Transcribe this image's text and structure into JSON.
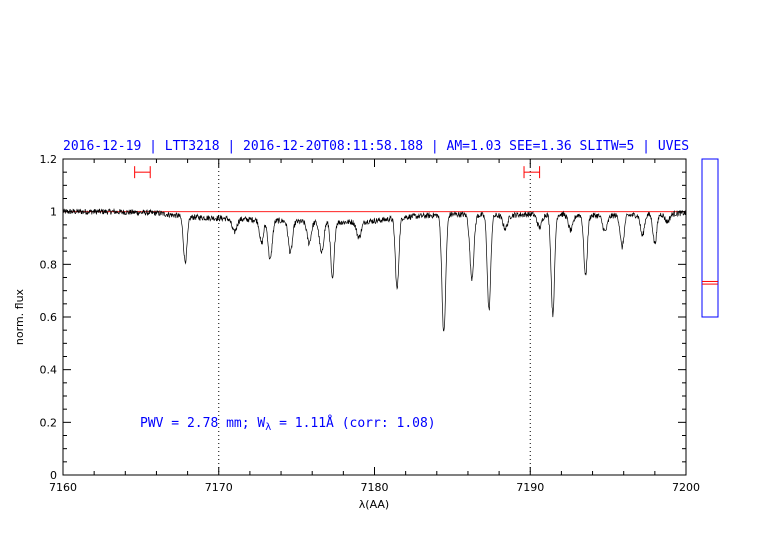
{
  "colors": {
    "spectrum": "#000000",
    "continuum": "#ff0000",
    "text": "#0000ff",
    "side_box": "#0000ff"
  },
  "chart_data": {
    "type": "line",
    "title": "2016-12-19 | LTT3218 | 2016-12-20T08:11:58.188 | AM=1.03  SEE=1.36  SLITW=5 | UVES",
    "xlabel": "λ(AA)",
    "ylabel": "norm. flux",
    "xlim": [
      7160,
      7200
    ],
    "ylim": [
      0,
      1.2
    ],
    "x_ticks": [
      7160,
      7170,
      7180,
      7190,
      7200
    ],
    "x_tick_labels": [
      "7160",
      "7170",
      "7180",
      "7190",
      "7200"
    ],
    "y_ticks": [
      0,
      0.2,
      0.4,
      0.6,
      0.8,
      1,
      1.2
    ],
    "y_tick_labels": [
      "0",
      "0.2",
      "0.4",
      "0.6",
      "0.8",
      "1",
      "1.2"
    ],
    "continuum_level": 1.0,
    "reference_lines_x": [
      7170,
      7190
    ],
    "windows": [
      {
        "x_range": [
          7164.6,
          7165.6
        ],
        "y": 1.15
      },
      {
        "x_range": [
          7189.6,
          7190.6
        ],
        "y": 1.15
      }
    ],
    "side_indicator": {
      "box_range": [
        0.6,
        1.2
      ],
      "marks": [
        0.735,
        0.725
      ]
    },
    "annotation": {
      "prefix": "PWV = 2.78 mm; W",
      "subscript": "λ",
      "suffix": " = 1.11Å (corr: 1.08)"
    },
    "series": [
      {
        "baseline": [
          [
            7160,
            1.0
          ],
          [
            7163,
            1.0
          ],
          [
            7166,
            0.995
          ],
          [
            7168,
            0.98
          ],
          [
            7170,
            0.975
          ],
          [
            7172,
            0.97
          ],
          [
            7174,
            0.965
          ],
          [
            7176,
            0.96
          ],
          [
            7178,
            0.96
          ],
          [
            7180,
            0.965
          ],
          [
            7182,
            0.98
          ],
          [
            7185,
            0.99
          ],
          [
            7188,
            0.985
          ],
          [
            7190,
            0.99
          ],
          [
            7192,
            0.99
          ],
          [
            7194,
            0.985
          ],
          [
            7196,
            0.985
          ],
          [
            7198,
            0.99
          ],
          [
            7200,
            0.995
          ]
        ],
        "absorption_lines": [
          {
            "center": 7167.85,
            "depth": 0.17,
            "width": 0.12
          },
          {
            "center": 7171.0,
            "depth": 0.05,
            "width": 0.15
          },
          {
            "center": 7172.75,
            "depth": 0.09,
            "width": 0.12
          },
          {
            "center": 7173.3,
            "depth": 0.15,
            "width": 0.13
          },
          {
            "center": 7174.6,
            "depth": 0.12,
            "width": 0.13
          },
          {
            "center": 7175.8,
            "depth": 0.08,
            "width": 0.13
          },
          {
            "center": 7176.6,
            "depth": 0.12,
            "width": 0.13
          },
          {
            "center": 7177.3,
            "depth": 0.22,
            "width": 0.11
          },
          {
            "center": 7179.0,
            "depth": 0.06,
            "width": 0.15
          },
          {
            "center": 7181.45,
            "depth": 0.27,
            "width": 0.11
          },
          {
            "center": 7184.45,
            "depth": 0.45,
            "width": 0.12
          },
          {
            "center": 7186.25,
            "depth": 0.24,
            "width": 0.13
          },
          {
            "center": 7187.35,
            "depth": 0.36,
            "width": 0.11
          },
          {
            "center": 7188.4,
            "depth": 0.05,
            "width": 0.15
          },
          {
            "center": 7190.6,
            "depth": 0.05,
            "width": 0.15
          },
          {
            "center": 7191.45,
            "depth": 0.38,
            "width": 0.11
          },
          {
            "center": 7192.6,
            "depth": 0.06,
            "width": 0.15
          },
          {
            "center": 7193.55,
            "depth": 0.23,
            "width": 0.11
          },
          {
            "center": 7194.8,
            "depth": 0.06,
            "width": 0.15
          },
          {
            "center": 7195.9,
            "depth": 0.12,
            "width": 0.12
          },
          {
            "center": 7197.2,
            "depth": 0.08,
            "width": 0.12
          },
          {
            "center": 7198.0,
            "depth": 0.11,
            "width": 0.12
          },
          {
            "center": 7198.8,
            "depth": 0.03,
            "width": 0.15
          }
        ]
      }
    ]
  }
}
